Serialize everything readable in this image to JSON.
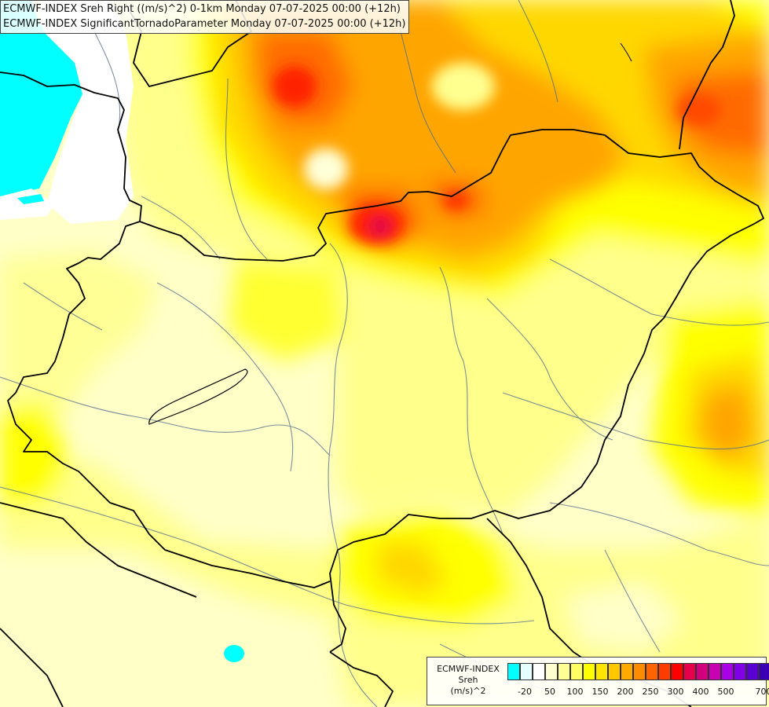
{
  "titles": {
    "line1": "ECMWF-INDEX Sreh Right ((m/s)^2) 0-1km Monday 07-07-2025 00:00 (+12h)",
    "line2": "ECMWF-INDEX SignificantTornadoParameter Monday 07-07-2025 00:00 (+12h)"
  },
  "legend": {
    "line1": "ECMWF-INDEX",
    "line2": "Sreh",
    "line3": "(m/s)^2",
    "colors": [
      "#00ffff",
      "#e6ffff",
      "#ffffff",
      "#ffffd2",
      "#ffff96",
      "#ffff64",
      "#ffff00",
      "#ffe600",
      "#ffc800",
      "#ffaa00",
      "#ff8c00",
      "#ff6400",
      "#ff3c00",
      "#ff0000",
      "#e6004b",
      "#d2007d",
      "#c800b4",
      "#aa00e6",
      "#8200e6",
      "#5a00d2",
      "#3c00b4",
      "#000096"
    ],
    "ticks": [
      "-20",
      "50",
      "100",
      "150",
      "200",
      "250",
      "300",
      "400",
      "500",
      "700"
    ]
  },
  "palette": {
    "cyan": "#00ffff",
    "pale": "#ffffc8",
    "light_yellow": "#ffff8c",
    "yellow": "#ffff00",
    "gold": "#ffd700",
    "orange": "#ffa500",
    "dark_orange": "#ff6a00",
    "red": "#ff2000",
    "crimson": "#e0004a",
    "border": "#000000",
    "river": "#4f6b8f"
  }
}
